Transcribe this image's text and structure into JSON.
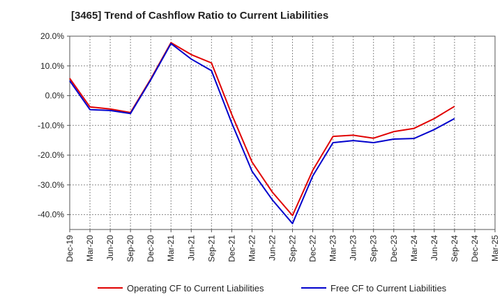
{
  "chart_data": {
    "type": "line",
    "title": "[3465]  Trend of Cashflow Ratio to Current Liabilities",
    "xlabel": "",
    "ylabel": "",
    "ylim": [
      -45,
      20
    ],
    "grid": true,
    "legend_position": "bottom",
    "y_ticks": [
      20,
      10,
      0,
      -10,
      -20,
      -30,
      -40
    ],
    "y_tick_labels": [
      "20.0%",
      "10.0%",
      "0.0%",
      "-10.0%",
      "-20.0%",
      "-30.0%",
      "-40.0%"
    ],
    "categories": [
      "Dec-19",
      "Mar-20",
      "Jun-20",
      "Sep-20",
      "Dec-20",
      "Mar-21",
      "Jun-21",
      "Sep-21",
      "Dec-21",
      "Mar-22",
      "Jun-22",
      "Sep-22",
      "Dec-22",
      "Mar-23",
      "Jun-23",
      "Sep-23",
      "Dec-23",
      "Mar-24",
      "Jun-24",
      "Sep-24",
      "Dec-24",
      "Mar-25"
    ],
    "x_tick_labels": [
      "Dec-19",
      "Mar-20",
      "Jun-20",
      "Sep-20",
      "Dec-20",
      "Mar-21",
      "Jun-21",
      "Sep-21",
      "Dec-21",
      "Mar-22",
      "Jun-22",
      "Sep-22",
      "Dec-22",
      "Mar-23",
      "Jun-23",
      "Sep-23",
      "Dec-23",
      "Mar-24",
      "Jun-24",
      "Sep-24",
      "Dec-24",
      "Mar-25"
    ],
    "series": [
      {
        "name": "Operating CF to Current Liabilities",
        "color": "#e00000",
        "values": [
          5.8,
          -3.8,
          -4.5,
          -5.7,
          5.6,
          17.8,
          13.8,
          11.0,
          -6.3,
          -22.3,
          -32.4,
          -40.3,
          -25.1,
          -13.7,
          -13.3,
          -14.3,
          -12.1,
          -11.0,
          -7.7,
          -3.6,
          null,
          null
        ]
      },
      {
        "name": "Free CF to Current Liabilities",
        "color": "#0000cc",
        "values": [
          5.0,
          -4.7,
          -5.0,
          -6.0,
          5.3,
          17.5,
          12.3,
          8.4,
          -9.2,
          -25.4,
          -35.0,
          -43.0,
          -27.0,
          -15.8,
          -15.1,
          -15.8,
          -14.6,
          -14.4,
          -11.4,
          -7.7,
          null,
          null
        ]
      }
    ]
  }
}
